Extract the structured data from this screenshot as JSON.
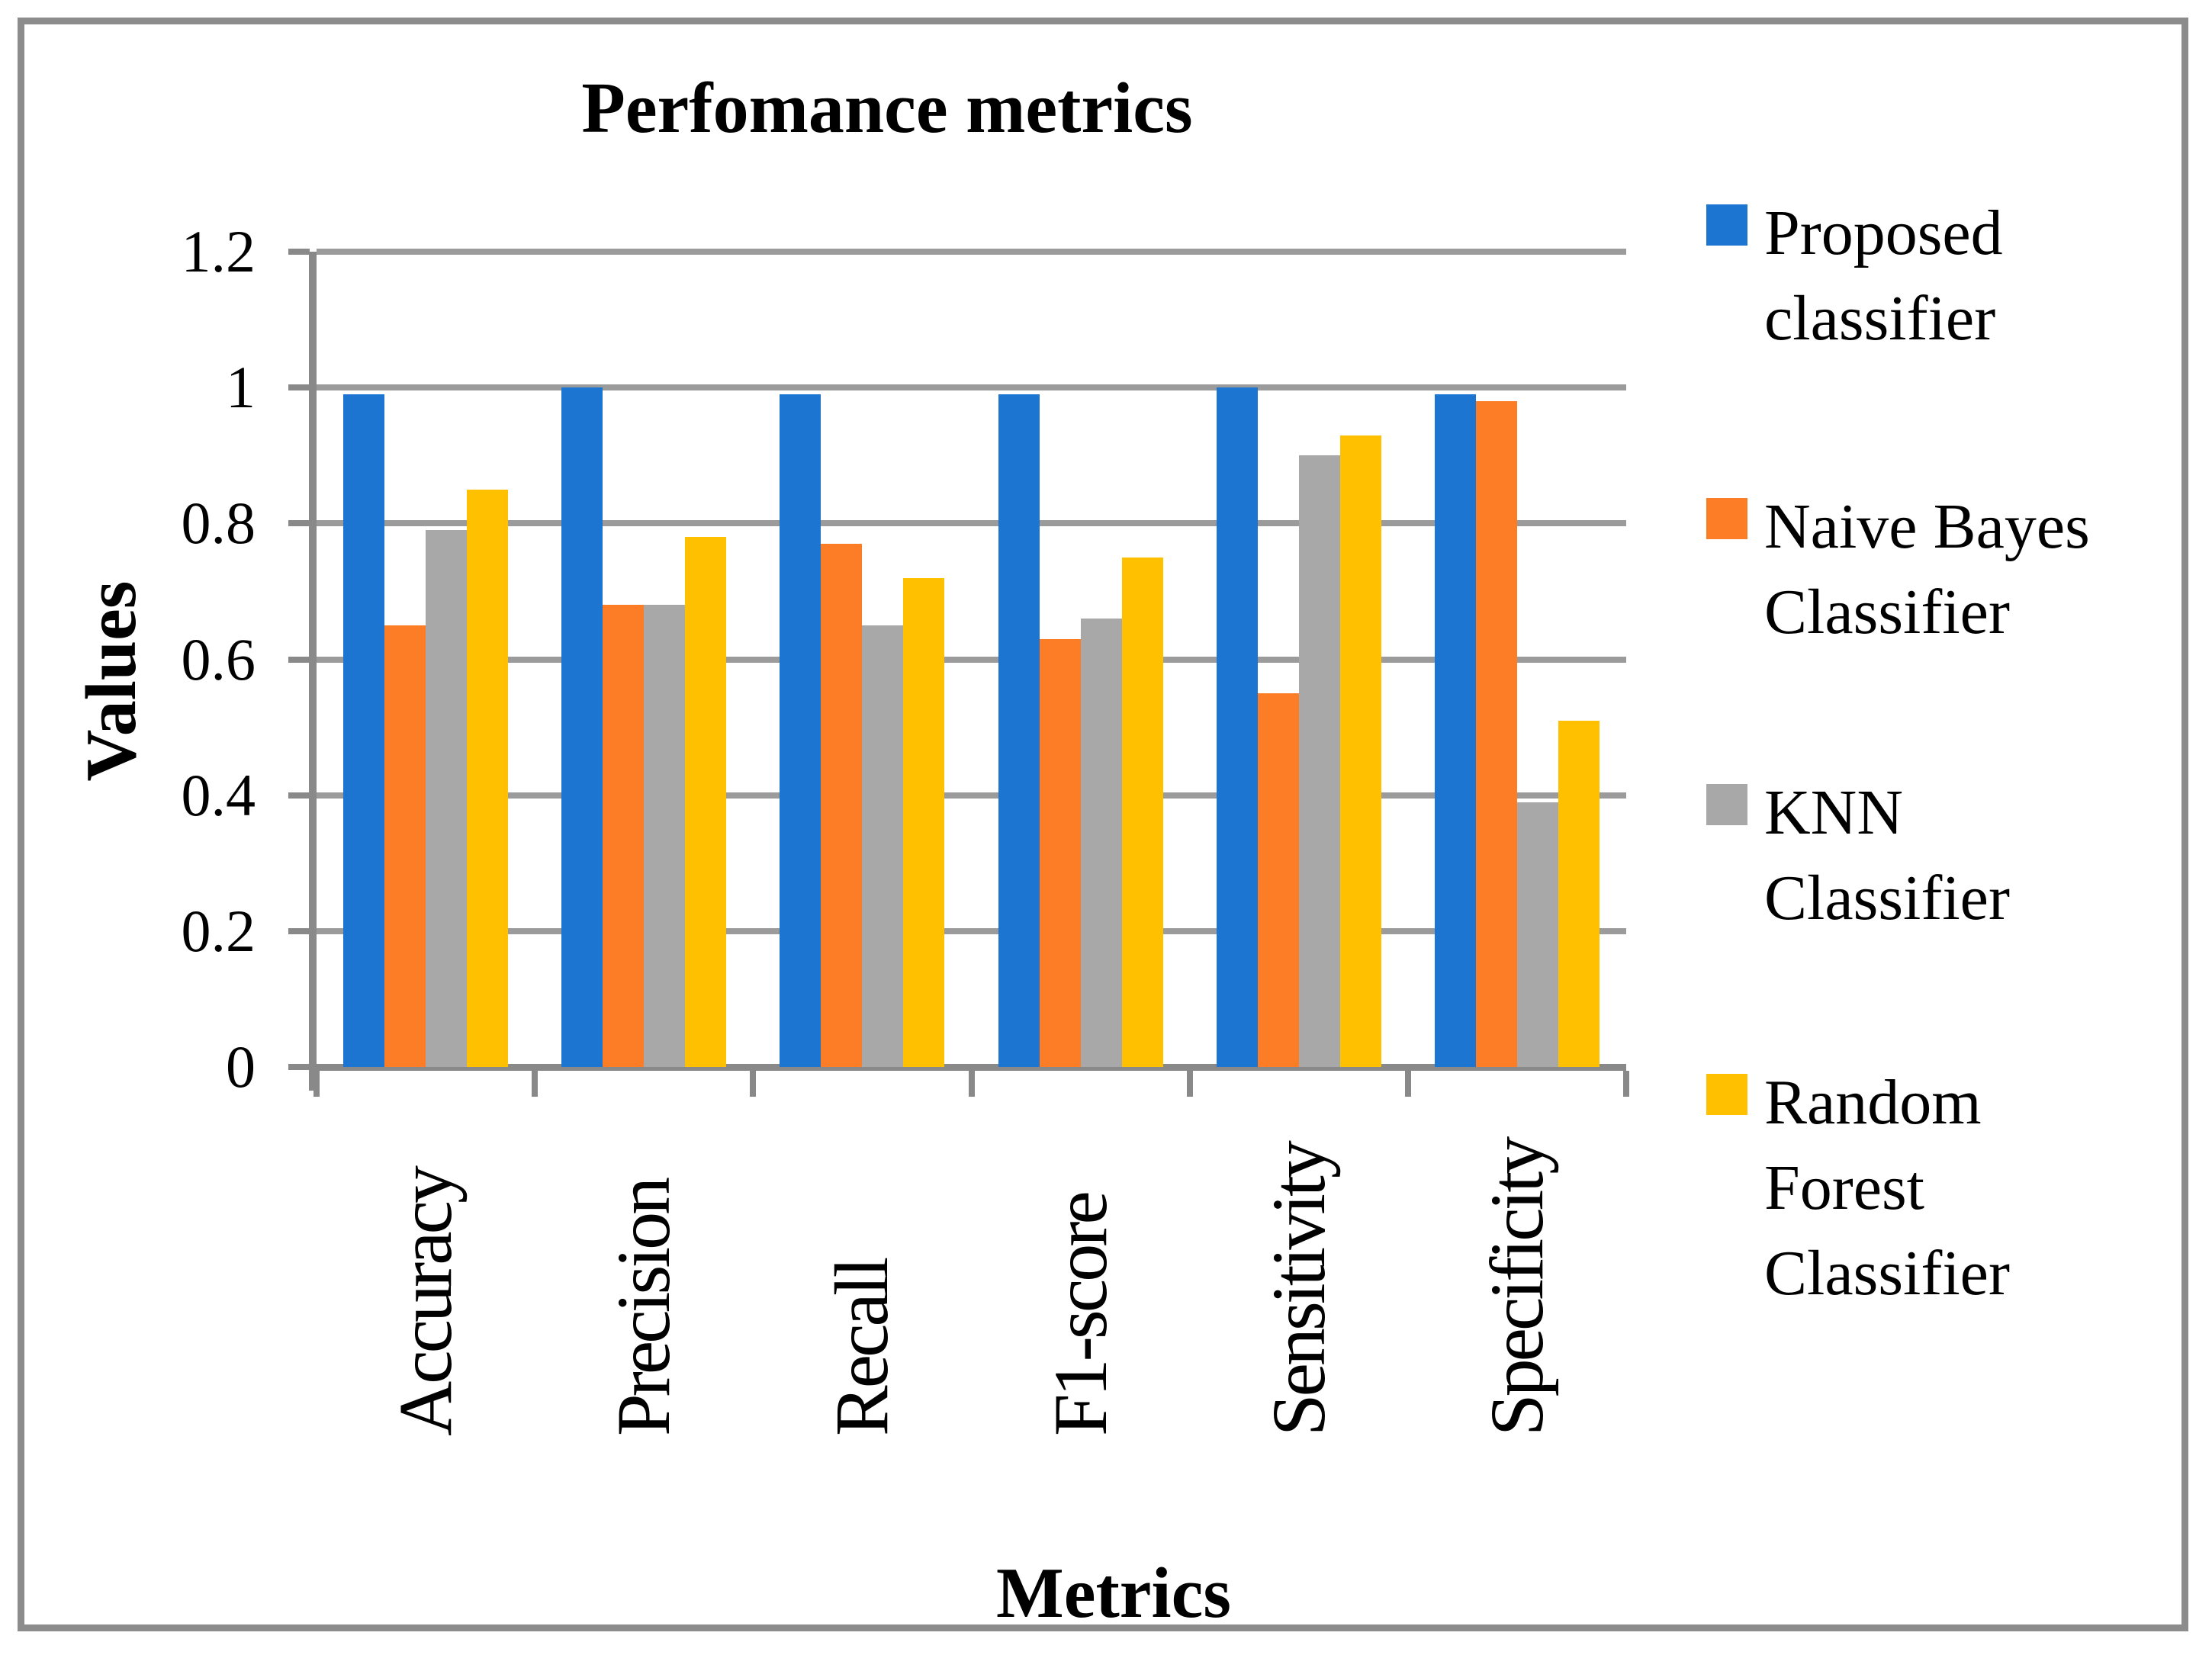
{
  "chart_data": {
    "type": "bar",
    "title": "Perfomance metrics",
    "xlabel": "Metrics",
    "ylabel": "Values",
    "ylim": [
      0,
      1.2
    ],
    "grid": "horizontal",
    "legend_position": "right",
    "categories": [
      "Accuracy",
      "Precision",
      "Recall",
      "F1-score",
      "Sensitivity",
      "Specificity"
    ],
    "y_ticks": [
      {
        "label": "1.2",
        "value": 1.2
      },
      {
        "label": "1",
        "value": 1.0
      },
      {
        "label": "0.8",
        "value": 0.8
      },
      {
        "label": "0.6",
        "value": 0.6
      },
      {
        "label": "0.4",
        "value": 0.4
      },
      {
        "label": "0.2",
        "value": 0.2
      },
      {
        "label": "0",
        "value": 0.0
      }
    ],
    "series": [
      {
        "name": "Proposed classifier",
        "lines": [
          "Proposed",
          "classifier"
        ],
        "color": "#1c75d1",
        "values": [
          0.99,
          1.0,
          0.99,
          0.99,
          1.0,
          0.99
        ]
      },
      {
        "name": "Naive Bayes Classifier",
        "lines": [
          "Naive Bayes",
          "Classifier"
        ],
        "color": "#fc7d26",
        "values": [
          0.65,
          0.68,
          0.77,
          0.63,
          0.55,
          0.98
        ]
      },
      {
        "name": "KNN Classifier",
        "lines": [
          "KNN",
          "Classifier"
        ],
        "color": "#a8a8a8",
        "values": [
          0.79,
          0.68,
          0.65,
          0.66,
          0.9,
          0.39
        ]
      },
      {
        "name": "Random Forest Classifier",
        "lines": [
          "Random",
          "Forest",
          "Classifier"
        ],
        "color": "#ffc000",
        "values": [
          0.85,
          0.78,
          0.72,
          0.75,
          0.93,
          0.51
        ]
      }
    ],
    "colors": {
      "gridline": "#9b9b9b",
      "axis": "#898989",
      "frame_border": "#8c8c8c",
      "background": "#ffffff",
      "text": "#000000"
    },
    "legend_item_tops": [
      250,
      635,
      1010,
      1390
    ]
  }
}
